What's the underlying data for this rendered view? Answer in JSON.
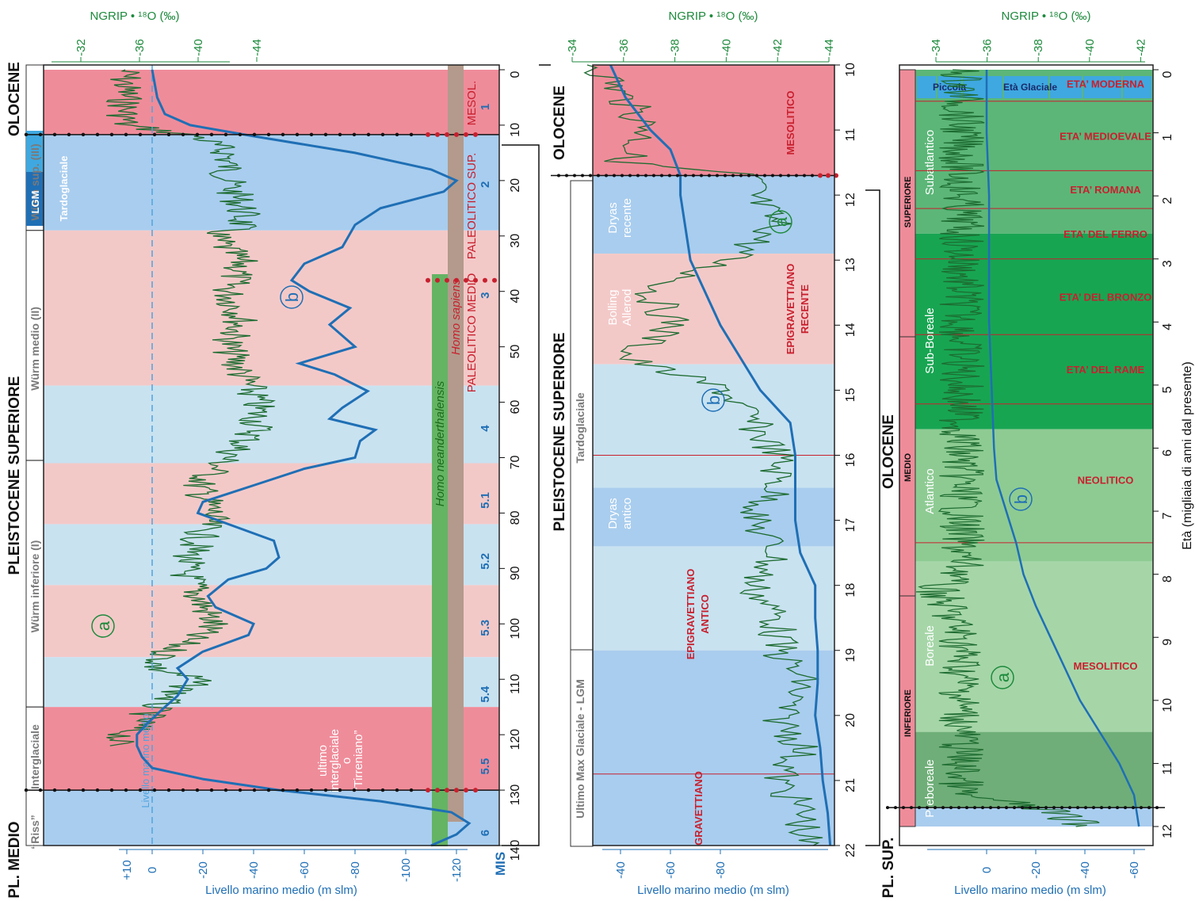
{
  "colors": {
    "interglacial": "#ef8c9a",
    "interglacial_light": "#f3c9c8",
    "glacial": "#a9cdee",
    "glacial_light": "#c9e2f0",
    "sea_level": "#1f6fb5",
    "ngrip": "#1d6b30",
    "neanderthal": "#64b464",
    "sapiens": "#b39a8c",
    "cultures": "#c8202e",
    "holocene_dark": "#18a552",
    "holocene_mid": "#5cb678"
  },
  "panel1": {
    "ngrip_label": "NGRIP • ¹⁸O (‰)",
    "ngrip_ticks": [
      "-32",
      "-36",
      "-40",
      "-44"
    ],
    "sea_ticks": [
      "+10",
      "0",
      "-20",
      "-40",
      "-60",
      "-80",
      "-100",
      "-120"
    ],
    "sea_label": "Livello marino medio (m slm)",
    "sea_mean_label": "Livello marino medio",
    "age_ticks": [
      "0",
      "10",
      "20",
      "30",
      "40",
      "50",
      "60",
      "70",
      "80",
      "90",
      "100",
      "110",
      "120",
      "130",
      "140"
    ],
    "mis_label": "MIS",
    "mis": [
      "1",
      "2",
      "3",
      "4",
      "5.1",
      "5.2",
      "5.3",
      "5.4",
      "5.5",
      "6"
    ],
    "epochs": [
      "OLOCENE",
      "PLEISTOCENE SUPERIORE",
      "PL. MEDIO"
    ],
    "stages": [
      "Würm sup. (III)",
      "Würm medio (II)",
      "Würm inferiore (I)",
      "Interglaciale",
      "“Riss”"
    ],
    "sub_stages": [
      "LGM",
      "Tardoglaciale"
    ],
    "interglacial_note": [
      "ultimo",
      "interglaciale",
      "o",
      "“Tirreniano”"
    ],
    "homo": [
      "Homo neanderthalensis",
      "Homo sapiens"
    ],
    "cultures": [
      "MESOL.",
      "PALEOLITICO SUP.",
      "PALEOLITICO MEDIO"
    ],
    "curve_a": "a",
    "curve_b": "b"
  },
  "panel2": {
    "ngrip_label": "NGRIP • ¹⁸O (‰)",
    "ngrip_ticks": [
      "-34",
      "-36",
      "-38",
      "-40",
      "-42",
      "-44"
    ],
    "sea_ticks": [
      "-40",
      "-60",
      "-80"
    ],
    "sea_label": "Livello marino medio (m slm)",
    "age_ticks": [
      "10",
      "11",
      "12",
      "13",
      "14",
      "15",
      "16",
      "17",
      "18",
      "19",
      "20",
      "21",
      "22"
    ],
    "epochs": [
      "OLOCENE",
      "PLEISTOCENE SUPERIORE"
    ],
    "sub_stages": [
      "Tardoglaciale",
      "Ultimo Max Glaciale - LGM"
    ],
    "periods": [
      [
        "Dryas",
        "recente"
      ],
      [
        "Bolling",
        "Allerod"
      ],
      [
        "Dryas",
        "antico"
      ]
    ],
    "cultures": [
      "MESOLITICO",
      "EPIGRAVETTIANO",
      "RECENTE",
      "EPIGRAVETTIANO",
      "ANTICO",
      "GRAVETTIANO"
    ],
    "curve_a": "a",
    "curve_b": "b"
  },
  "panel3": {
    "ngrip_label": "NGRIP • ¹⁸O (‰)",
    "ngrip_ticks": [
      "-34",
      "-36",
      "-38",
      "-40",
      "-42"
    ],
    "sea_ticks": [
      "0",
      "-20",
      "-40",
      "-60"
    ],
    "sea_label": "Livello marino medio (m slm)",
    "age_ticks": [
      "0",
      "1",
      "2",
      "3",
      "4",
      "5",
      "6",
      "7",
      "8",
      "9",
      "10",
      "11",
      "12"
    ],
    "age_label": "Età (migliaia di anni dal presente)",
    "epochs": [
      "OLOCENE",
      "PL. SUP."
    ],
    "holocene_parts": [
      "SUPERIORE",
      "MEDIO",
      "INFERIORE"
    ],
    "periods": [
      "Subatlantico",
      "Sub-Boreale",
      "Atlantico",
      "Boreale",
      "Preboreale"
    ],
    "little_ice_age": [
      "Piccola",
      "Età Glaciale"
    ],
    "cultures": [
      "ETA’ MODERNA",
      "ETA’ MEDIOEVALE",
      "ETA’ ROMANA",
      "ETA’ DEL FERRO",
      "ETA’ DEL BRONZO",
      "ETA’ DEL RAME",
      "NEOLITICO",
      "MESOLITICO"
    ],
    "curve_a": "a",
    "curve_b": "b"
  },
  "chart_data": [
    {
      "type": "line",
      "xlabel": "",
      "ylabel": "Livello marino medio (m slm)",
      "x_unit": "migliaia di anni dal presente",
      "xlim": [
        0,
        140
      ],
      "ylim": [
        -125,
        12
      ],
      "series": [
        {
          "name": "b",
          "x": [
            0,
            5,
            8,
            10,
            12,
            15,
            18,
            20,
            22,
            25,
            28,
            32,
            35,
            38,
            40,
            43,
            46,
            50,
            53,
            55,
            58,
            61,
            63,
            65,
            67,
            70,
            72,
            75,
            78,
            80,
            82,
            85,
            88,
            90,
            92,
            95,
            97,
            100,
            102,
            105,
            108,
            110,
            113,
            115,
            118,
            120,
            122,
            124,
            126,
            128,
            130,
            132,
            134,
            136,
            138,
            140
          ],
          "y": [
            0,
            -2,
            -5,
            -15,
            -40,
            -80,
            -110,
            -120,
            -115,
            -90,
            -80,
            -75,
            -60,
            -55,
            -62,
            -78,
            -70,
            -80,
            -58,
            -72,
            -85,
            -75,
            -70,
            -88,
            -82,
            -80,
            -60,
            -40,
            -20,
            -18,
            -30,
            -48,
            -50,
            -45,
            -30,
            -22,
            -25,
            -40,
            -38,
            -20,
            -10,
            -14,
            -10,
            -5,
            2,
            6,
            6,
            4,
            0,
            -20,
            -50,
            -90,
            -118,
            -125,
            -120,
            -110
          ]
        }
      ],
      "ngrip_permil": {
        "x": [
          0,
          5,
          10,
          12,
          15,
          20,
          25,
          28,
          30,
          35,
          40,
          45,
          50,
          55,
          60,
          65,
          70,
          75,
          80,
          85,
          90,
          95,
          100,
          105,
          108,
          110,
          115,
          118,
          120,
          122
        ],
        "y": [
          -35,
          -35,
          -35,
          -40,
          -42,
          -42,
          -43,
          -43,
          -41,
          -43,
          -42,
          -43,
          -42,
          -43,
          -44,
          -44,
          -42,
          -40,
          -41,
          -40,
          -39,
          -40,
          -41,
          -38,
          -37,
          -40,
          -37,
          -36,
          -35,
          -34
        ]
      }
    },
    {
      "type": "line",
      "ylabel": "Livello marino medio (m slm)",
      "x_unit": "migliaia di anni dal presente",
      "xlim": [
        10,
        22
      ],
      "ylim": [
        -120,
        -30
      ],
      "series": [
        {
          "name": "b",
          "x": [
            10,
            10.5,
            11,
            11.3,
            11.7,
            12,
            12.5,
            13,
            13.5,
            14,
            14.5,
            15,
            15.5,
            16,
            16.5,
            17,
            17.5,
            18,
            18.5,
            19,
            19.5,
            20,
            20.5,
            21,
            21.5,
            22
          ],
          "y": [
            -36,
            -42,
            -52,
            -60,
            -64,
            -64,
            -66,
            -68,
            -74,
            -80,
            -88,
            -96,
            -108,
            -110,
            -110,
            -110,
            -112,
            -118,
            -118,
            -119,
            -119,
            -118,
            -120,
            -121,
            -123,
            -124
          ]
        }
      ],
      "ngrip_permil": {
        "x": [
          10,
          10.5,
          11,
          11.5,
          11.7,
          12,
          12.5,
          13,
          13.5,
          14,
          14.5,
          15,
          15.5,
          16,
          16.5,
          17,
          17.5,
          18,
          18.5,
          19,
          19.5,
          20,
          20.5,
          21,
          21.5,
          22
        ],
        "y": [
          -35,
          -36,
          -37,
          -36,
          -41,
          -41,
          -42,
          -40,
          -37,
          -38,
          -36,
          -40,
          -41,
          -42,
          -42,
          -41,
          -42,
          -41,
          -42,
          -42,
          -43,
          -42,
          -43,
          -42,
          -43,
          -43
        ]
      }
    },
    {
      "type": "line",
      "ylabel": "Livello marino medio (m slm)",
      "x_unit": "migliaia di anni dal presente",
      "xlim": [
        0,
        12
      ],
      "ylim": [
        -70,
        5
      ],
      "series": [
        {
          "name": "b",
          "x": [
            0,
            1,
            2,
            3,
            4,
            5,
            6,
            6.5,
            7,
            7.5,
            8,
            8.5,
            9,
            9.5,
            10,
            10.5,
            11,
            11.5,
            12
          ],
          "y": [
            0,
            0,
            -1,
            -1,
            -1,
            -2,
            -3,
            -4,
            -8,
            -12,
            -15,
            -20,
            -26,
            -32,
            -38,
            -46,
            -54,
            -60,
            -62
          ]
        }
      ],
      "ngrip_permil": {
        "x": [
          0,
          0.5,
          1,
          2,
          3,
          4,
          5,
          6,
          7,
          8,
          8.2,
          9,
          10,
          10.5,
          11,
          11.5,
          11.7,
          12
        ],
        "y": [
          -35,
          -35,
          -35,
          -35,
          -35,
          -35,
          -35,
          -35,
          -35,
          -35,
          -34,
          -35,
          -35,
          -35,
          -35,
          -35,
          -38,
          -40
        ]
      }
    }
  ]
}
